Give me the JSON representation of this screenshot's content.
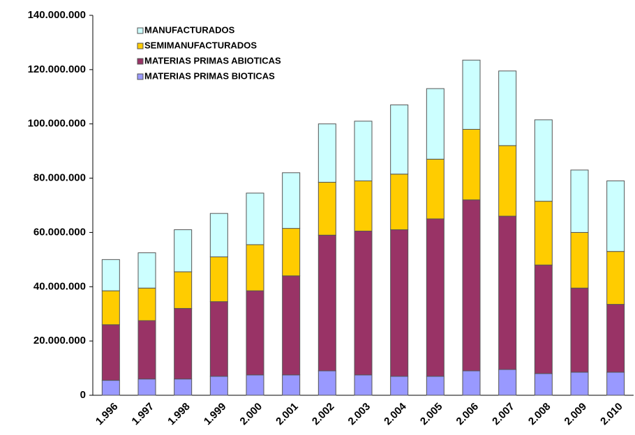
{
  "chart_data": {
    "type": "stacked-bar",
    "categories": [
      "1.996",
      "1.997",
      "1.998",
      "1.999",
      "2.000",
      "2.001",
      "2.002",
      "2.003",
      "2.004",
      "2.005",
      "2.006",
      "2.007",
      "2.008",
      "2.009",
      "2.010"
    ],
    "series": [
      {
        "name": "MATERIAS PRIMAS BIOTICAS",
        "color": "#9999ff",
        "values": [
          5500000,
          6000000,
          6000000,
          7000000,
          7500000,
          7500000,
          9000000,
          7500000,
          7000000,
          7000000,
          9000000,
          9500000,
          8000000,
          8500000,
          8500000
        ]
      },
      {
        "name": "MATERIAS PRIMAS ABIOTICAS",
        "color": "#993366",
        "values": [
          20500000,
          21500000,
          26000000,
          27500000,
          31000000,
          36500000,
          50000000,
          53000000,
          54000000,
          58000000,
          63000000,
          56500000,
          40000000,
          31000000,
          25000000
        ]
      },
      {
        "name": "SEMIMANUFACTURADOS",
        "color": "#ffcc00",
        "values": [
          12500000,
          12000000,
          13500000,
          16500000,
          17000000,
          17500000,
          19500000,
          18500000,
          20500000,
          22000000,
          26000000,
          26000000,
          23500000,
          20500000,
          19500000
        ]
      },
      {
        "name": "MANUFACTURADOS",
        "color": "#ccffff",
        "values": [
          11500000,
          13000000,
          15500000,
          16000000,
          19000000,
          20500000,
          21500000,
          22000000,
          25500000,
          26000000,
          25500000,
          27500000,
          30000000,
          23000000,
          26000000
        ]
      }
    ],
    "ylim": [
      0,
      140000000
    ],
    "yticks": [
      {
        "value": 0,
        "label": "0"
      },
      {
        "value": 20000000,
        "label": "20.000.000"
      },
      {
        "value": 40000000,
        "label": "40.000.000"
      },
      {
        "value": 60000000,
        "label": "60.000.000"
      },
      {
        "value": 80000000,
        "label": "80.000.000"
      },
      {
        "value": 100000000,
        "label": "100.000.000"
      },
      {
        "value": 120000000,
        "label": "120.000.000"
      },
      {
        "value": 140000000,
        "label": "140.000.000"
      }
    ]
  }
}
